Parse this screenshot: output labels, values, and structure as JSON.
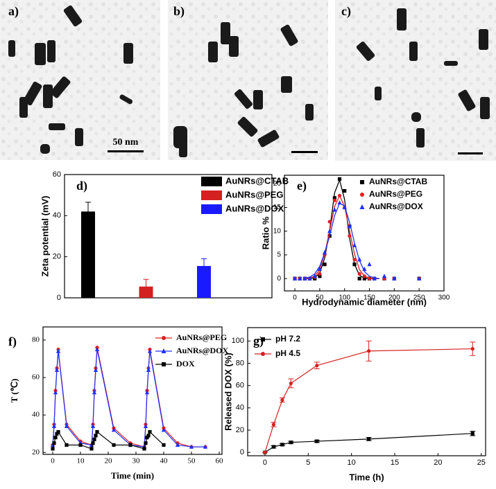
{
  "images": [
    {
      "label": "a)",
      "scale_bar": "50 nm"
    },
    {
      "label": "b)"
    },
    {
      "label": "c)"
    }
  ],
  "chart_data": [
    {
      "type": "bar",
      "title": "d)",
      "ylabel": "Zeta potential (mV)",
      "categories": [
        null,
        null,
        null
      ],
      "ylim": [
        0,
        60
      ],
      "yticks": [
        0,
        20,
        40,
        60
      ],
      "series": [
        {
          "name": "AuNRs@CTAB",
          "color": "#000000",
          "values": [
            42,
            null,
            null
          ],
          "errors": [
            4.5,
            null,
            null
          ]
        },
        {
          "name": "AuNRs@PEG",
          "color": "#d42020",
          "values": [
            null,
            5.5,
            null
          ],
          "errors": [
            null,
            3.5,
            null
          ]
        },
        {
          "name": "AuNRs@DOX",
          "color": "#1a1aff",
          "values": [
            null,
            null,
            15.5
          ],
          "errors": [
            null,
            null,
            3.5
          ]
        }
      ]
    },
    {
      "type": "scatter",
      "title": "e)",
      "xlabel": "Hydrodynamic diameter (nm)",
      "ylabel": "Ratio %",
      "xlim": [
        -21,
        300
      ],
      "ylim": [
        -2.6,
        21.8
      ],
      "xticks": [
        0,
        50,
        100,
        150,
        200,
        250,
        300
      ],
      "yticks": [
        0,
        5,
        10,
        15,
        20
      ],
      "series": [
        {
          "name": "AuNRs@CTAB",
          "color": "#000000",
          "marker": "square",
          "x": [
            0,
            10,
            20,
            30,
            40,
            50,
            60,
            70,
            80,
            90,
            100,
            110,
            120,
            130,
            140,
            150,
            160,
            180,
            200,
            250
          ],
          "values": [
            0,
            0,
            0,
            0,
            0,
            0.5,
            3,
            9,
            17,
            21,
            18.5,
            11,
            3,
            0,
            0,
            0,
            0,
            0,
            0,
            0
          ],
          "fit_x": [
            20,
            30,
            40,
            50,
            60,
            70,
            80,
            90,
            100,
            110,
            120,
            130,
            140,
            150,
            160,
            170
          ],
          "fit_values": [
            0,
            0,
            0.2,
            1.2,
            4.3,
            10.2,
            18.1,
            20.8,
            16.7,
            8.6,
            3.0,
            0.7,
            0.1,
            0,
            0,
            0
          ]
        },
        {
          "name": "AuNRs@PEG",
          "color": "#e02020",
          "marker": "circle",
          "x": [
            0,
            10,
            20,
            30,
            40,
            50,
            60,
            70,
            80,
            90,
            100,
            110,
            120,
            130,
            140,
            150,
            160,
            180,
            200,
            250
          ],
          "values": [
            0,
            0,
            0,
            0,
            0.3,
            1,
            5,
            12,
            16.5,
            17.5,
            15,
            9,
            4,
            1,
            0.5,
            0,
            0,
            0,
            0,
            0
          ],
          "fit_x": [
            20,
            30,
            40,
            50,
            60,
            70,
            80,
            90,
            100,
            110,
            120,
            130,
            140,
            150,
            160,
            170
          ],
          "fit_values": [
            0,
            0.1,
            0.5,
            1.9,
            5.2,
            10.1,
            15.2,
            17.5,
            15.2,
            10.1,
            5.2,
            1.9,
            0.5,
            0.1,
            0,
            0
          ]
        },
        {
          "name": "AuNRs@DOX",
          "color": "#2030ff",
          "marker": "triangle",
          "x": [
            0,
            10,
            20,
            30,
            40,
            50,
            60,
            70,
            80,
            90,
            100,
            110,
            120,
            130,
            140,
            150,
            160,
            180,
            200,
            250
          ],
          "values": [
            0,
            0,
            0,
            0,
            0.5,
            2,
            5.5,
            10,
            14.5,
            16,
            15,
            11,
            7,
            4,
            2,
            3,
            0,
            0.5,
            0,
            0
          ],
          "fit_x": [
            20,
            30,
            40,
            50,
            60,
            70,
            80,
            90,
            100,
            110,
            120,
            130,
            140,
            150,
            160,
            170
          ],
          "fit_values": [
            0.1,
            0.3,
            1.0,
            2.6,
            5.4,
            9.0,
            13.3,
            15.9,
            15.3,
            11.9,
            7.5,
            3.8,
            1.5,
            0.5,
            0.1,
            0
          ]
        }
      ]
    },
    {
      "type": "line",
      "title": "f)",
      "xlabel": "Time (min)",
      "ylabel": "T (℃)",
      "xlim": [
        -3.5,
        61
      ],
      "ylim": [
        19,
        87
      ],
      "xticks": [
        0,
        10,
        20,
        30,
        40,
        50,
        60
      ],
      "yticks": [
        20,
        40,
        60,
        80
      ],
      "series": [
        {
          "name": "AuNRs@PEG",
          "color": "#e02020",
          "marker": "circle",
          "x": [
            0,
            0.5,
            1,
            1.5,
            2,
            5,
            10,
            14,
            14.5,
            15,
            15.5,
            16,
            22,
            28,
            33,
            33.5,
            34,
            34.5,
            35,
            40,
            45,
            50,
            55
          ],
          "values": [
            24,
            35,
            53,
            65,
            75,
            35,
            26,
            24,
            35,
            53,
            65,
            76,
            33,
            25,
            23,
            35,
            53,
            65,
            75,
            33,
            25,
            23,
            23
          ]
        },
        {
          "name": "AuNRs@DOX",
          "color": "#2030ff",
          "marker": "triangle",
          "x": [
            0,
            0.5,
            1,
            1.5,
            2,
            5,
            10,
            14,
            14.5,
            15,
            15.5,
            16,
            22,
            28,
            33,
            33.5,
            34,
            34.5,
            35,
            40,
            45,
            50,
            55
          ],
          "values": [
            24,
            34,
            52,
            64,
            74,
            34,
            25,
            24,
            34,
            52,
            64,
            75,
            32,
            24,
            23,
            34,
            52,
            64,
            74,
            32,
            24,
            23,
            23
          ]
        },
        {
          "name": "DOX",
          "color": "#000000",
          "marker": "square",
          "x": [
            0,
            0.5,
            1,
            1.5,
            2,
            5,
            10,
            14,
            14.5,
            15,
            15.5,
            16,
            22,
            28,
            33,
            33.5,
            34,
            34.5,
            35,
            40
          ],
          "values": [
            22,
            25,
            28,
            30,
            31,
            24,
            24,
            22,
            25,
            27,
            29,
            31,
            24,
            24,
            22,
            25,
            28,
            29,
            31,
            24
          ]
        }
      ]
    },
    {
      "type": "line",
      "title": "g)",
      "xlabel": "Time (h)",
      "ylabel": "Released DOX (%)",
      "xlim": [
        -2,
        25.5
      ],
      "ylim": [
        -3,
        112
      ],
      "xticks": [
        0,
        5,
        10,
        15,
        20,
        25
      ],
      "yticks": [
        0,
        20,
        40,
        60,
        80,
        100
      ],
      "series": [
        {
          "name": "pH 7.2",
          "color": "#000000",
          "marker": "square",
          "x": [
            0,
            1,
            2,
            3,
            6,
            12,
            24
          ],
          "values": [
            0,
            5,
            7,
            9,
            10,
            12,
            17
          ],
          "errors": [
            0,
            1,
            1,
            1,
            1,
            1.5,
            2
          ]
        },
        {
          "name": "pH 4.5",
          "color": "#d42020",
          "marker": "circle",
          "x": [
            0,
            1,
            2,
            3,
            6,
            12,
            24
          ],
          "values": [
            0,
            25,
            47,
            62,
            78,
            91,
            93
          ],
          "errors": [
            0,
            2,
            2,
            4,
            3,
            9,
            6
          ]
        }
      ]
    }
  ]
}
